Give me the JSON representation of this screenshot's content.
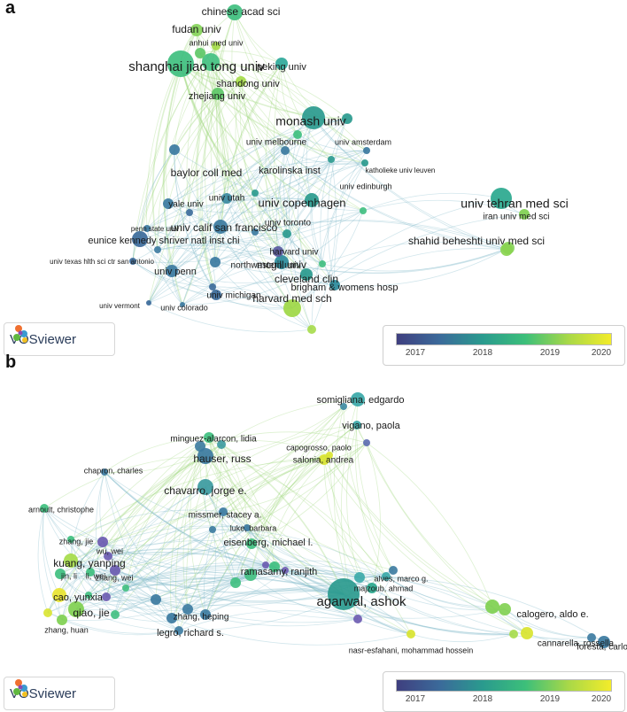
{
  "panel_a": {
    "letter": "a",
    "legend_ticks": [
      "2017",
      "2018",
      "2019",
      "2020"
    ],
    "badge": "VOSviewer",
    "nodes": [
      {
        "label": "chinese acad sci",
        "fs": 12,
        "color": "#3fbf7f"
      },
      {
        "label": "fudan univ",
        "fs": 12,
        "color": "#86d45a"
      },
      {
        "label": "anhui med univ",
        "fs": 9,
        "color": "#a6dc4a"
      },
      {
        "label": "shanghai jiao tong univ",
        "fs": 15,
        "color": "#3fbf7f"
      },
      {
        "label": "peking univ",
        "fs": 11,
        "color": "#2ea89a"
      },
      {
        "label": "shandong univ",
        "fs": 11,
        "color": "#a6dc4a"
      },
      {
        "label": "zhejiang univ",
        "fs": 11,
        "color": "#5cc766"
      },
      {
        "label": "monash univ",
        "fs": 14,
        "color": "#2a9a8e"
      },
      {
        "label": "univ melbourne",
        "fs": 10,
        "color": "#3fbf7f"
      },
      {
        "label": "univ amsterdam",
        "fs": 9,
        "color": "#2a9a8e"
      },
      {
        "label": "baylor coll med",
        "fs": 12,
        "color": "#3b7aa0"
      },
      {
        "label": "karolinska inst",
        "fs": 11,
        "color": "#3b7aa0"
      },
      {
        "label": "katholieke univ leuven",
        "fs": 8,
        "color": "#3b7aa0"
      },
      {
        "label": "univ edinburgh",
        "fs": 9,
        "color": "#2a9a8e"
      },
      {
        "label": "univ tehran med sci",
        "fs": 14,
        "color": "#2aa88e"
      },
      {
        "label": "yale univ",
        "fs": 10,
        "color": "#3b7aa0"
      },
      {
        "label": "univ utah",
        "fs": 10,
        "color": "#3b8aa0"
      },
      {
        "label": "univ copenhagen",
        "fs": 13,
        "color": "#2a9a8e"
      },
      {
        "label": "iran univ med sci",
        "fs": 10,
        "color": "#7fd050"
      },
      {
        "label": "penn state univ",
        "fs": 8,
        "color": "#3b7aa0"
      },
      {
        "label": "univ calif san francisco",
        "fs": 12,
        "color": "#3b7aa0"
      },
      {
        "label": "univ toronto",
        "fs": 10,
        "color": "#2a9a8e"
      },
      {
        "label": "eunice kennedy shriver natl inst chi",
        "fs": 11,
        "color": "#3b6a9a"
      },
      {
        "label": "mcgill univ",
        "fs": 12,
        "color": "#2a8a9a"
      },
      {
        "label": "harvard univ",
        "fs": 10,
        "color": "#5a5aa0"
      },
      {
        "label": "shahid beheshti univ med sci",
        "fs": 12,
        "color": "#8ad450"
      },
      {
        "label": "univ texas hlth sci ctr san antonio",
        "fs": 8,
        "color": "#3b6a9a"
      },
      {
        "label": "univ penn",
        "fs": 11,
        "color": "#3b7aa0"
      },
      {
        "label": "northwestern univ",
        "fs": 10,
        "color": "#3b7aa0"
      },
      {
        "label": "cleveland clin",
        "fs": 12,
        "color": "#2a9a8e"
      },
      {
        "label": "univ michigan",
        "fs": 10,
        "color": "#3b6a9a"
      },
      {
        "label": "brigham & womens hosp",
        "fs": 11,
        "color": "#2a8a9a"
      },
      {
        "label": "univ vermont",
        "fs": 8,
        "color": "#3b6a9a"
      },
      {
        "label": "univ colorado",
        "fs": 9,
        "color": "#3b7aa0"
      },
      {
        "label": "harvard med sch",
        "fs": 12,
        "color": "#9ed845"
      }
    ]
  },
  "panel_b": {
    "letter": "b",
    "legend_ticks": [
      "2017",
      "2018",
      "2019",
      "2020"
    ],
    "badge": "VOSviewer",
    "nodes": [
      {
        "label": "somigliana, edgardo",
        "fs": 11,
        "color": "#3aa8a8"
      },
      {
        "label": "vigano, paola",
        "fs": 11,
        "color": "#3aa8a8"
      },
      {
        "label": "minguez-alarcon, lidia",
        "fs": 10,
        "color": "#3fbf7f"
      },
      {
        "label": "capogrosso, paolo",
        "fs": 9,
        "color": "#d9e430"
      },
      {
        "label": "hauser, russ",
        "fs": 12,
        "color": "#3b7aa0"
      },
      {
        "label": "salonia, andrea",
        "fs": 10,
        "color": "#d9e430"
      },
      {
        "label": "chapron, charles",
        "fs": 9,
        "color": "#3b7aa0"
      },
      {
        "label": "chavarro, jorge e.",
        "fs": 12,
        "color": "#3b9aa0"
      },
      {
        "label": "arnoult, christophe",
        "fs": 9,
        "color": "#3fbf7f"
      },
      {
        "label": "missmer, stacey a.",
        "fs": 10,
        "color": "#3b7aa0"
      },
      {
        "label": "luke, barbara",
        "fs": 9,
        "color": "#3b7aa0"
      },
      {
        "label": "zhang, jie",
        "fs": 9,
        "color": "#3fbf7f"
      },
      {
        "label": "wu, wei",
        "fs": 9,
        "color": "#6a5ab0"
      },
      {
        "label": "eisenberg, michael l.",
        "fs": 11,
        "color": "#3fbf7f"
      },
      {
        "label": "kuang, yanping",
        "fs": 12,
        "color": "#a6dc4a"
      },
      {
        "label": "jin, li",
        "fs": 9,
        "color": "#3fbf7f"
      },
      {
        "label": "li, wei",
        "fs": 9,
        "color": "#3fbf7f"
      },
      {
        "label": "zhang, wei",
        "fs": 9,
        "color": "#6a5ab0"
      },
      {
        "label": "ramasamy, ranjith",
        "fs": 11,
        "color": "#3fbf7f"
      },
      {
        "label": "alves, marco g.",
        "fs": 9,
        "color": "#3aa8a8"
      },
      {
        "label": "cao, yunxia",
        "fs": 11,
        "color": "#e8e430"
      },
      {
        "label": "majzoub, ahmad",
        "fs": 9,
        "color": "#2aa88e"
      },
      {
        "label": "agarwal, ashok",
        "fs": 15,
        "color": "#2a9a8e"
      },
      {
        "label": "qiao, jie",
        "fs": 12,
        "color": "#7fd050"
      },
      {
        "label": "zhang, heping",
        "fs": 10,
        "color": "#3b7aa0"
      },
      {
        "label": "calogero, aldo e.",
        "fs": 11,
        "color": "#7fd050"
      },
      {
        "label": "legro, richard s.",
        "fs": 11,
        "color": "#3b7aa0"
      },
      {
        "label": "cannarella, rossella",
        "fs": 10,
        "color": "#d9e430"
      },
      {
        "label": "zhang, huan",
        "fs": 9,
        "color": "#7fd050"
      },
      {
        "label": "foresta, carlo",
        "fs": 10,
        "color": "#3b7aa0"
      },
      {
        "label": "nasr-esfahani, mohammad hossein",
        "fs": 9,
        "color": "#d9e430"
      }
    ]
  }
}
